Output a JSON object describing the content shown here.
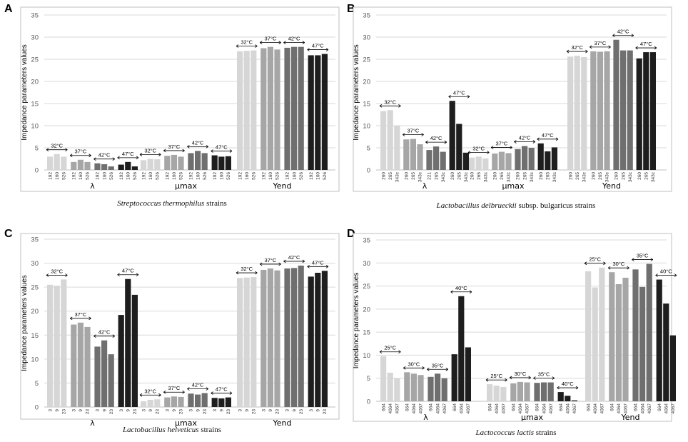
{
  "figure": {
    "ylabel": "Impedance parameters values"
  },
  "chart_data": [
    {
      "type": "bar",
      "panel_letter": "A",
      "caption_italic": "Streptococcus thermophilus",
      "caption_rest": " strains",
      "ylim": [
        0,
        35
      ],
      "yticks": [
        0,
        5,
        10,
        15,
        20,
        25,
        30,
        35
      ],
      "ylabel": "Impedance parameters values",
      "groups": [
        {
          "name": "λ",
          "temps": [
            {
              "label": "32°C",
              "strains": [
                "192",
                "160",
                "526"
              ],
              "values": [
                3.0,
                3.6,
                3.0
              ]
            },
            {
              "label": "37°C",
              "strains": [
                "192",
                "160",
                "526"
              ],
              "values": [
                1.8,
                2.3,
                1.8
              ]
            },
            {
              "label": "42°C",
              "strains": [
                "192",
                "160",
                "526"
              ],
              "values": [
                1.5,
                1.3,
                0.8
              ]
            },
            {
              "label": "47°C",
              "strains": [
                "192",
                "160",
                "526"
              ],
              "values": [
                1.2,
                1.8,
                0.8
              ]
            }
          ]
        },
        {
          "name": "µmax",
          "temps": [
            {
              "label": "32°C",
              "strains": [
                "192",
                "160",
                "526"
              ],
              "values": [
                2.2,
                2.5,
                2.4
              ]
            },
            {
              "label": "37°C",
              "strains": [
                "192",
                "160",
                "526"
              ],
              "values": [
                3.2,
                3.4,
                3.0
              ]
            },
            {
              "label": "42°C",
              "strains": [
                "192",
                "160",
                "526"
              ],
              "values": [
                3.8,
                4.3,
                3.8
              ]
            },
            {
              "label": "47°C",
              "strains": [
                "192",
                "160",
                "526"
              ],
              "values": [
                3.3,
                3.0,
                3.1
              ]
            }
          ]
        },
        {
          "name": "Yend",
          "temps": [
            {
              "label": "32°C",
              "strains": [
                "192",
                "160",
                "526"
              ],
              "values": [
                26.8,
                26.9,
                27.0
              ]
            },
            {
              "label": "37°C",
              "strains": [
                "192",
                "160",
                "526"
              ],
              "values": [
                27.5,
                27.8,
                27.2
              ]
            },
            {
              "label": "42°C",
              "strains": [
                "192",
                "160",
                "526"
              ],
              "values": [
                27.6,
                27.8,
                27.8
              ]
            },
            {
              "label": "47°C",
              "strains": [
                "192",
                "160",
                "526"
              ],
              "values": [
                25.9,
                25.9,
                26.2
              ]
            }
          ]
        }
      ]
    },
    {
      "type": "bar",
      "panel_letter": "B",
      "caption_italic": "Lactobacillus delbrueckii",
      "caption_rest": " subsp. bulgaricus strains",
      "ylim": [
        0,
        35
      ],
      "yticks": [
        0,
        5,
        10,
        15,
        20,
        25,
        30,
        35
      ],
      "ylabel": "Impedance parameters values",
      "groups": [
        {
          "name": "λ",
          "temps": [
            {
              "label": "32°C",
              "strains": [
                "260",
                "265",
                "343c"
              ],
              "values": [
                13.3,
                13.5,
                10.0
              ]
            },
            {
              "label": "37°C",
              "strains": [
                "260",
                "265",
                "343c"
              ],
              "values": [
                6.9,
                7.0,
                5.8
              ]
            },
            {
              "label": "42°C",
              "strains": [
                "221",
                "265",
                "343c"
              ],
              "values": [
                4.5,
                5.3,
                4.1
              ]
            },
            {
              "label": "47°C",
              "strains": [
                "260",
                "265",
                "343c"
              ],
              "values": [
                15.6,
                10.4,
                3.9
              ]
            }
          ]
        },
        {
          "name": "µmax",
          "temps": [
            {
              "label": "32°C",
              "strains": [
                "260",
                "265",
                "343c"
              ],
              "values": [
                2.8,
                3.0,
                2.6
              ]
            },
            {
              "label": "37°C",
              "strains": [
                "260",
                "265",
                "343c"
              ],
              "values": [
                3.7,
                4.1,
                3.8
              ]
            },
            {
              "label": "42°C",
              "strains": [
                "260",
                "265",
                "343c"
              ],
              "values": [
                4.7,
                5.4,
                5.0
              ]
            },
            {
              "label": "47°C",
              "strains": [
                "260",
                "265",
                "343c"
              ],
              "values": [
                6.0,
                4.2,
                5.1
              ]
            }
          ]
        },
        {
          "name": "Yend",
          "temps": [
            {
              "label": "32°C",
              "strains": [
                "260",
                "265",
                "343c"
              ],
              "values": [
                25.6,
                25.8,
                25.5
              ]
            },
            {
              "label": "37°C",
              "strains": [
                "260",
                "265",
                "343c"
              ],
              "values": [
                26.8,
                26.7,
                26.8
              ]
            },
            {
              "label": "42°C",
              "strains": [
                "260",
                "265",
                "343c"
              ],
              "values": [
                29.4,
                27.0,
                27.0
              ]
            },
            {
              "label": "47°C",
              "strains": [
                "260",
                "265",
                "343c"
              ],
              "values": [
                25.2,
                26.6,
                26.6
              ]
            }
          ]
        }
      ]
    },
    {
      "type": "bar",
      "panel_letter": "C",
      "caption_italic": "Lactobacillus helveticus",
      "caption_rest": " strains",
      "ylim": [
        0,
        35
      ],
      "yticks": [
        0,
        5,
        10,
        15,
        20,
        25,
        30,
        35
      ],
      "ylabel": "Impedance parameters values",
      "groups": [
        {
          "name": "λ",
          "temps": [
            {
              "label": "32°C",
              "strains": [
                "3",
                "9",
                "23"
              ],
              "values": [
                25.5,
                25.3,
                26.6
              ]
            },
            {
              "label": "37°C",
              "strains": [
                "3",
                "9",
                "23"
              ],
              "values": [
                17.2,
                17.6,
                16.7
              ]
            },
            {
              "label": "42°C",
              "strains": [
                "3",
                "9",
                "23"
              ],
              "values": [
                12.6,
                13.9,
                11.0
              ]
            },
            {
              "label": "47°C",
              "strains": [
                "3",
                "9",
                "23"
              ],
              "values": [
                19.2,
                26.7,
                23.4
              ]
            }
          ]
        },
        {
          "name": "µmax",
          "temps": [
            {
              "label": "32°C",
              "strains": [
                "3",
                "9",
                "23"
              ],
              "values": [
                1.2,
                1.5,
                1.6
              ]
            },
            {
              "label": "37°C",
              "strains": [
                "3",
                "9",
                "23"
              ],
              "values": [
                2.0,
                2.2,
                2.1
              ]
            },
            {
              "label": "42°C",
              "strains": [
                "3",
                "9",
                "23"
              ],
              "values": [
                2.8,
                2.6,
                2.9
              ]
            },
            {
              "label": "47°C",
              "strains": [
                "3",
                "9",
                "23"
              ],
              "values": [
                1.9,
                1.8,
                2.0
              ]
            }
          ]
        },
        {
          "name": "Yend",
          "temps": [
            {
              "label": "32°C",
              "strains": [
                "3",
                "9",
                "23"
              ],
              "values": [
                26.9,
                27.0,
                27.1
              ]
            },
            {
              "label": "37°C",
              "strains": [
                "3",
                "9",
                "23"
              ],
              "values": [
                28.6,
                28.9,
                28.5
              ]
            },
            {
              "label": "42°C",
              "strains": [
                "3",
                "9",
                "23"
              ],
              "values": [
                28.9,
                29.0,
                29.5
              ]
            },
            {
              "label": "47°C",
              "strains": [
                "3",
                "9",
                "23"
              ],
              "values": [
                27.2,
                28.0,
                28.4
              ]
            }
          ]
        }
      ]
    },
    {
      "type": "bar",
      "panel_letter": "D",
      "caption_italic": "Lactococcus lactis",
      "caption_rest": " strains",
      "ylim": [
        0,
        35
      ],
      "yticks": [
        0,
        5,
        10,
        15,
        20,
        25,
        30,
        35
      ],
      "ylabel": "Impedance parameters values",
      "groups": [
        {
          "name": "λ",
          "temps": [
            {
              "label": "25°C",
              "strains": [
                "664",
                "4064",
                "4067"
              ],
              "values": [
                9.8,
                6.2,
                5.0
              ]
            },
            {
              "label": "30°C",
              "strains": [
                "664",
                "4064",
                "4067"
              ],
              "values": [
                6.3,
                6.0,
                5.7
              ]
            },
            {
              "label": "35°C",
              "strains": [
                "664",
                "4064",
                "4067"
              ],
              "values": [
                5.3,
                6.0,
                5.0
              ]
            },
            {
              "label": "40°C",
              "strains": [
                "664",
                "4064",
                "4067"
              ],
              "values": [
                10.2,
                22.8,
                11.7
              ]
            }
          ]
        },
        {
          "name": "µmax",
          "temps": [
            {
              "label": "25°C",
              "strains": [
                "664",
                "4064",
                "4067"
              ],
              "values": [
                3.7,
                3.4,
                3.1
              ]
            },
            {
              "label": "30°C",
              "strains": [
                "664",
                "4064",
                "4067"
              ],
              "values": [
                3.9,
                4.2,
                4.1
              ]
            },
            {
              "label": "35°C",
              "strains": [
                "664",
                "4064",
                "4067"
              ],
              "values": [
                4.0,
                4.1,
                4.1
              ]
            },
            {
              "label": "40°C",
              "strains": [
                "664",
                "4064",
                "4067"
              ],
              "values": [
                2.0,
                1.2,
                0.2
              ]
            }
          ]
        },
        {
          "name": "Yend",
          "temps": [
            {
              "label": "25°C",
              "strains": [
                "664",
                "4064",
                "4067"
              ],
              "values": [
                28.2,
                24.7,
                29.0
              ]
            },
            {
              "label": "30°C",
              "strains": [
                "664",
                "4064",
                "4067"
              ],
              "values": [
                28.0,
                25.4,
                26.8
              ]
            },
            {
              "label": "35°C",
              "strains": [
                "664",
                "4064",
                "4067"
              ],
              "values": [
                28.6,
                24.8,
                29.8
              ]
            },
            {
              "label": "40°C",
              "strains": [
                "664",
                "4064",
                "4067"
              ],
              "values": [
                26.4,
                21.2,
                14.3
              ]
            }
          ]
        }
      ]
    }
  ],
  "style": {
    "temp_colors": [
      "#d6d6d6",
      "#a6a6a6",
      "#6f6f6f",
      "#1e1e1e"
    ],
    "grid_color": "#d9d9d9",
    "border_color": "#bfbfbf"
  }
}
